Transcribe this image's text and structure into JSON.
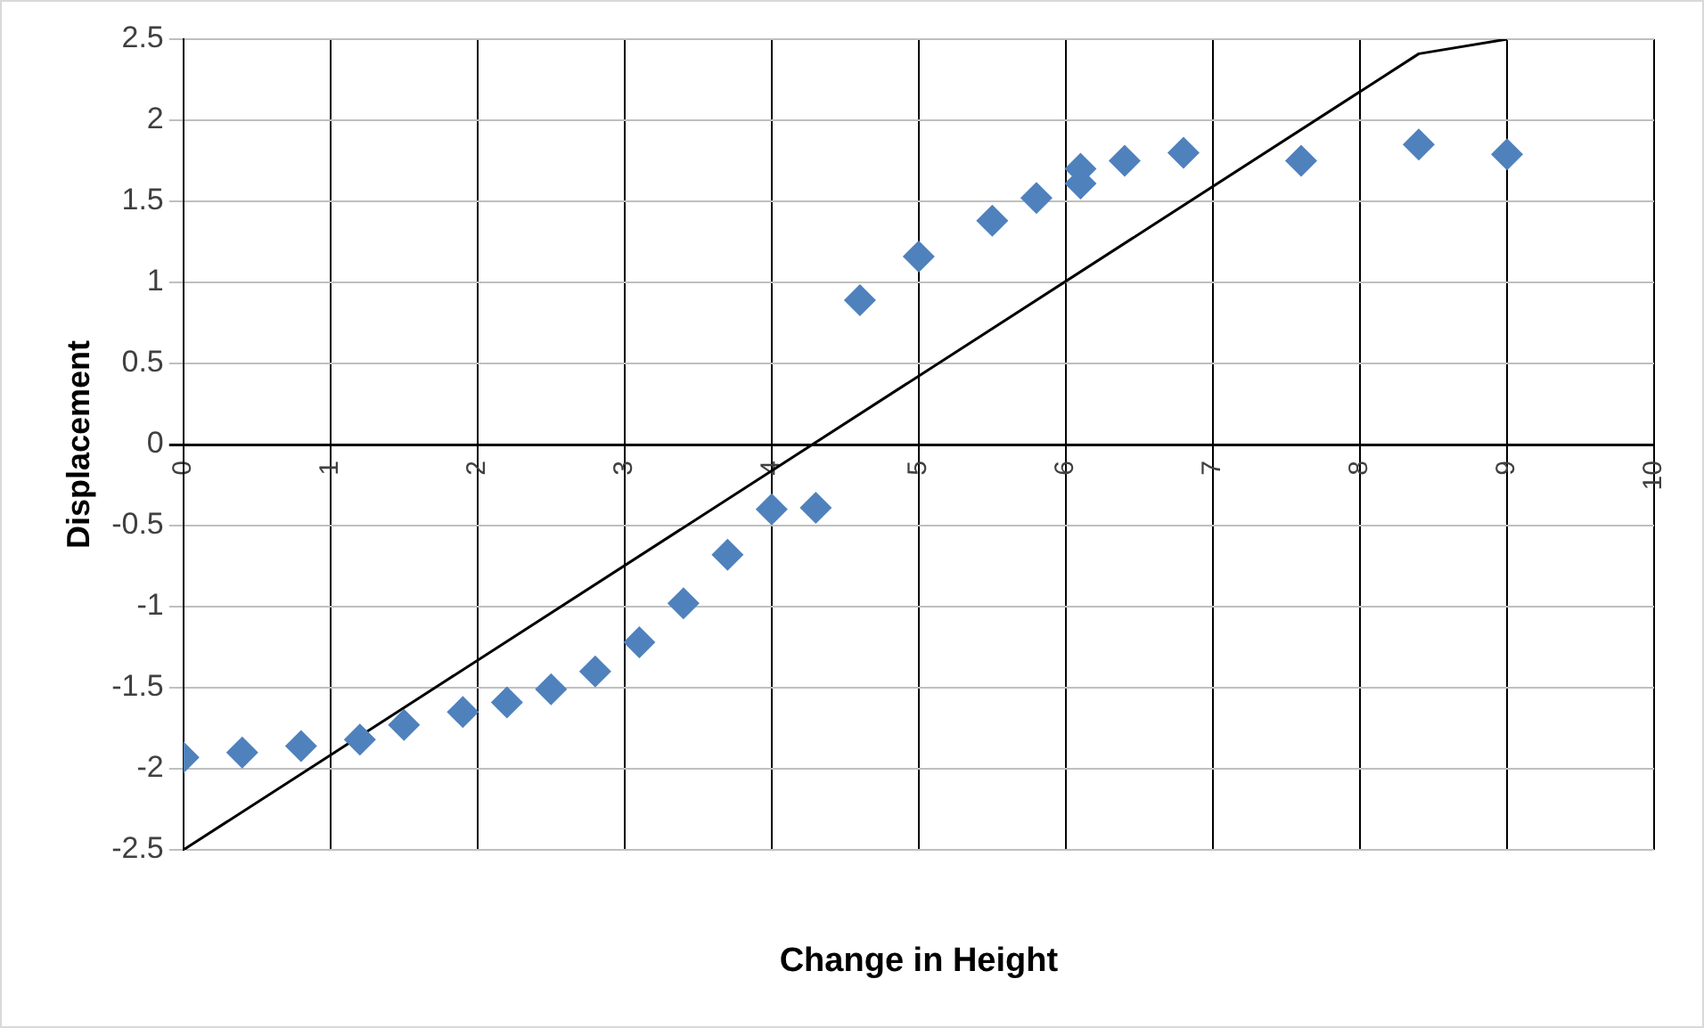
{
  "chart_data": {
    "type": "scatter",
    "xlabel": "Change in Height",
    "ylabel": "Displacement",
    "xlim": [
      0,
      10
    ],
    "xticks": [
      0,
      1,
      2,
      3,
      4,
      5,
      6,
      7,
      8,
      9,
      10
    ],
    "ylim": [
      -2.5,
      2.5
    ],
    "yticks": [
      -2.5,
      -2,
      -1.5,
      -1,
      -0.5,
      0,
      0.5,
      1,
      1.5,
      2,
      2.5
    ],
    "grid": true,
    "legend": false,
    "marker": "diamond",
    "series": [
      {
        "color": "#4f81bd",
        "x": [
          0,
          0.4,
          0.8,
          1.2,
          1.5,
          1.9,
          2.2,
          2.5,
          2.8,
          3.1,
          3.4,
          3.7,
          4.0,
          4.3,
          4.6,
          5.0,
          5.5,
          5.8,
          6.1,
          6.1,
          6.4,
          6.8,
          7.6,
          8.4,
          9.0
        ],
        "values": [
          -1.93,
          -1.9,
          -1.86,
          -1.82,
          -1.73,
          -1.65,
          -1.59,
          -1.51,
          -1.4,
          -1.22,
          -0.98,
          -0.68,
          -0.4,
          -0.39,
          0.89,
          1.16,
          1.38,
          1.52,
          1.7,
          1.61,
          1.75,
          1.8,
          1.75,
          1.85,
          1.79
        ]
      },
      {
        "type": "line",
        "color": "#000000",
        "marker": "none",
        "line_style": "solid",
        "x": [
          0,
          8.4,
          9.0
        ],
        "values": [
          -2.5,
          2.41,
          2.5
        ]
      }
    ]
  }
}
